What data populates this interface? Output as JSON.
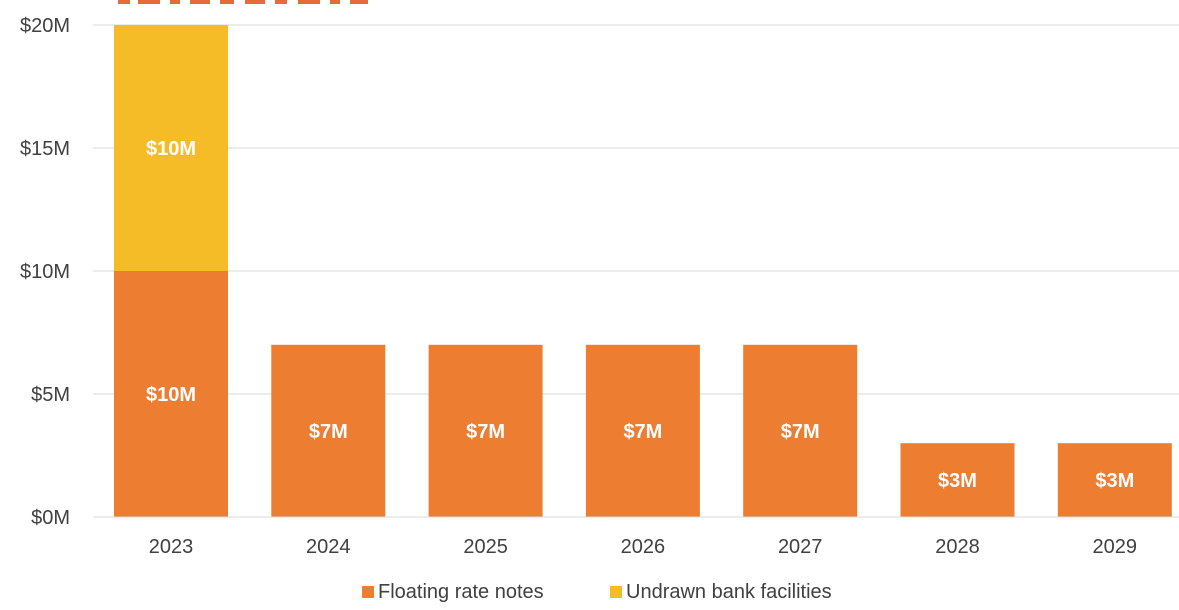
{
  "chart_data": {
    "type": "bar",
    "stacked": true,
    "categories": [
      "2023",
      "2024",
      "2025",
      "2026",
      "2027",
      "2028",
      "2029"
    ],
    "series": [
      {
        "name": "Floating rate notes",
        "color": "#ed7d31",
        "values": [
          10,
          7,
          7,
          7,
          7,
          3,
          3
        ],
        "labels": [
          "$10M",
          "$7M",
          "$7M",
          "$7M",
          "$7M",
          "$3M",
          "$3M"
        ]
      },
      {
        "name": "Undrawn bank facilities",
        "color": "#f6bc27",
        "values": [
          10,
          0,
          0,
          0,
          0,
          0,
          0
        ],
        "labels": [
          "$10M",
          "",
          "",
          "",
          "",
          "",
          ""
        ]
      }
    ],
    "ylim": [
      0,
      20
    ],
    "yticks": [
      {
        "value": 0,
        "label": "$0M"
      },
      {
        "value": 5,
        "label": "$5M"
      },
      {
        "value": 10,
        "label": "$10M"
      },
      {
        "value": 15,
        "label": "$15M"
      },
      {
        "value": 20,
        "label": "$20M"
      }
    ],
    "grid": true,
    "legend_position": "bottom",
    "title_color": "#e8693a"
  }
}
